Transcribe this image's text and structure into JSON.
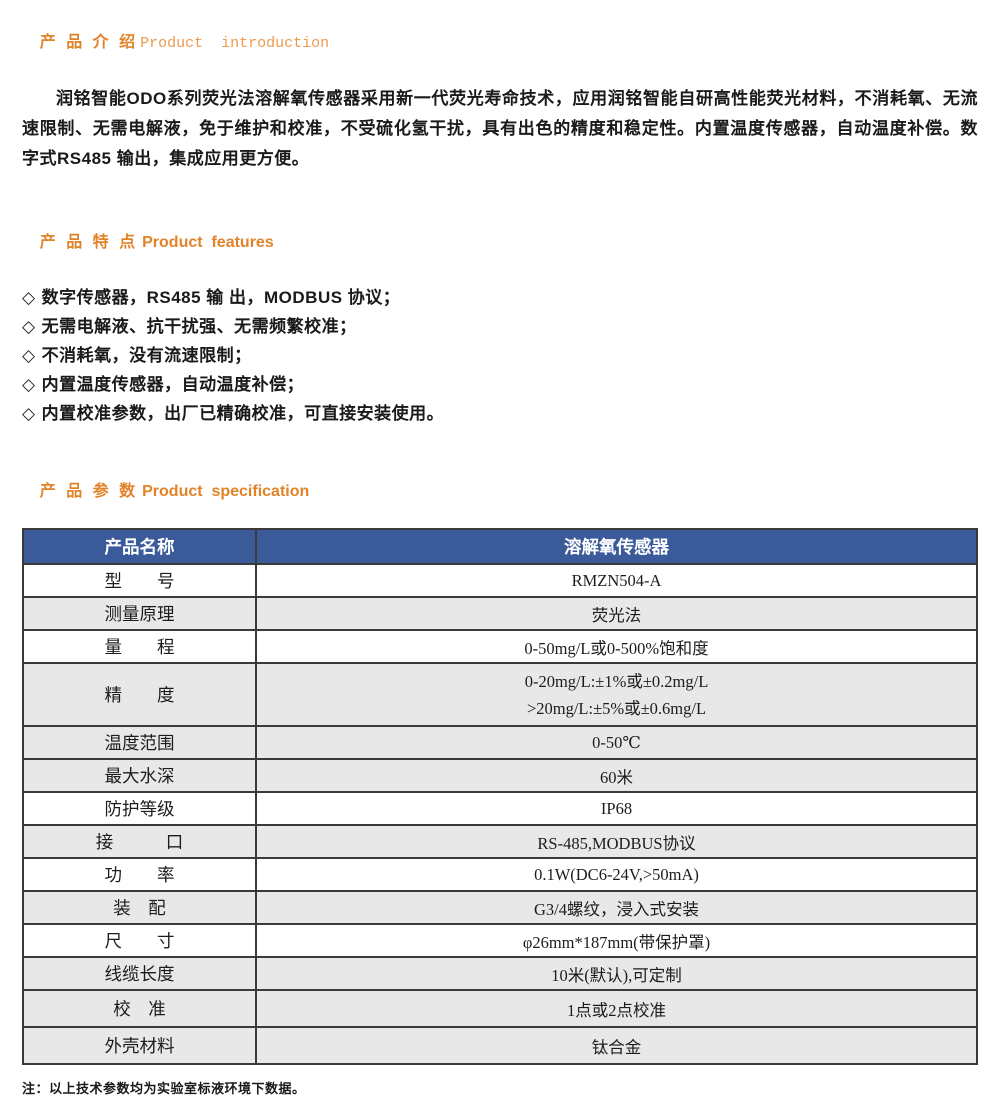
{
  "colors": {
    "accent_orange": "#e2832a",
    "accent_orange_light": "#ec9b4e",
    "table_header_blue": "#3a5a9a",
    "row_gray": "#e8e8e8",
    "table_border": "#3a3a3a"
  },
  "intro": {
    "heading_cn": "产 品 介 绍",
    "heading_en": "Product  introduction",
    "body": "润铭智能ODO系列荧光法溶解氧传感器采用新一代荧光寿命技术，应用润铭智能自研高性能荧光材料，不消耗氧、无流速限制、无需电解液，免于维护和校准，不受硫化氢干扰，具有出色的精度和稳定性。内置温度传感器，自动温度补偿。数字式RS485 输出，集成应用更方便。"
  },
  "features": {
    "heading_cn": "产 品 特 点",
    "heading_en": "Product  features",
    "bullet_glyph": "◇",
    "items": [
      "数字传感器，RS485 输 出，MODBUS 协议；",
      "无需电解液、抗干扰强、无需频繁校准；",
      "不消耗氧，没有流速限制；",
      "内置温度传感器，自动温度补偿；",
      "内置校准参数，出厂已精确校准，可直接安装使用。"
    ]
  },
  "spec": {
    "heading_cn": "产 品 参 数",
    "heading_en": "Product  specification",
    "table": {
      "header_left": "产品名称",
      "header_right": "溶解氧传感器",
      "rows": [
        {
          "label": "型　　号",
          "value": "RMZN504-A"
        },
        {
          "label": "测量原理",
          "value": "荧光法"
        },
        {
          "label": "量　　程",
          "value": "0-50mg/L或0-500%饱和度"
        },
        {
          "label": "精　　度",
          "value_line1": "0-20mg/L:±1%或±0.2mg/L",
          "value_line2": ">20mg/L:±5%或±0.6mg/L"
        },
        {
          "label": "温度范围",
          "value": "0-50℃"
        },
        {
          "label": "最大水深",
          "value": "60米"
        },
        {
          "label": "防护等级",
          "value": "IP68"
        },
        {
          "label": "接　　　口",
          "value": "RS-485,MODBUS协议"
        },
        {
          "label": "功　　率",
          "value": "0.1W(DC6-24V,>50mA)"
        },
        {
          "label": "装　配",
          "value": "G3/4螺纹，浸入式安装"
        },
        {
          "label": "尺　　寸",
          "value": "φ26mm*187mm(带保护罩)"
        },
        {
          "label": "线缆长度",
          "value": "10米(默认),可定制"
        },
        {
          "label": "校　准",
          "value": "1点或2点校准"
        },
        {
          "label": "外壳材料",
          "value": "钛合金"
        }
      ]
    },
    "note": "注：以上技术参数均为实验室标液环境下数据。"
  }
}
